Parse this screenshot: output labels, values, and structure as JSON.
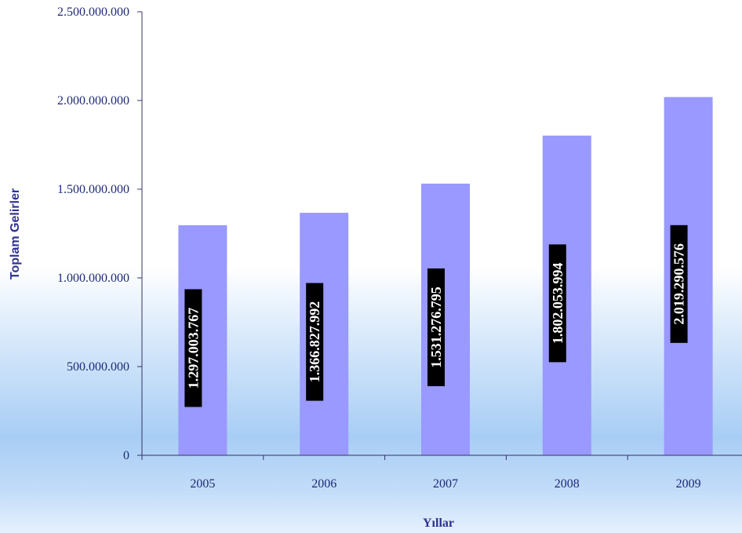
{
  "chart_data": {
    "type": "bar",
    "title": "",
    "xlabel": "Yıllar",
    "ylabel": "Toplam Gelirler",
    "categories": [
      "2005",
      "2006",
      "2007",
      "2008",
      "2009"
    ],
    "values": [
      1297003767,
      1366827992,
      1531276795,
      1802053994,
      2019290576
    ],
    "value_labels": [
      "1.297.003.767",
      "1.366.827.992",
      "1.531.276.795",
      "1.802.053.994",
      "2.019.290.576"
    ],
    "ylim": [
      0,
      2500000000
    ],
    "yticks": [
      0,
      500000000,
      1000000000,
      1500000000,
      2000000000,
      2500000000
    ],
    "ytick_labels": [
      "0",
      "500.000.000",
      "1.000.000.000",
      "1.500.000.000",
      "2.000.000.000",
      "2.500.000.000"
    ],
    "grid": false,
    "legend": "none",
    "colors": {
      "bar": "#9999ff",
      "label_bg": "#000000",
      "label_text": "#ffffff",
      "axis": "#333366",
      "text": "#1f2a78",
      "title": "#2e3192"
    }
  }
}
